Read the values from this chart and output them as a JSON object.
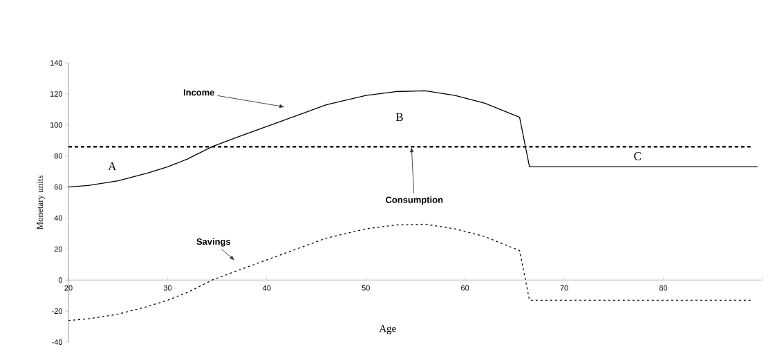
{
  "chart_data": {
    "type": "line",
    "xlabel": "Age",
    "ylabel": "Monetary units",
    "xlim": [
      20,
      90
    ],
    "ylim": [
      -40,
      140
    ],
    "xticks": [
      20,
      30,
      40,
      50,
      60,
      70,
      80,
      {
        "value": 90,
        "label": null
      }
    ],
    "yticks": [
      -40,
      -20,
      0,
      20,
      40,
      60,
      80,
      100,
      120,
      140
    ],
    "grid": false,
    "legend": false,
    "marker": "none",
    "series": [
      {
        "color": "#000000",
        "line_style": "solid",
        "x": [
          20,
          22,
          25,
          28,
          30,
          32,
          34.5,
          37,
          40,
          43,
          46,
          50,
          53,
          56,
          59,
          62,
          65.5,
          66.5,
          89.5
        ],
        "values": [
          60,
          61,
          64,
          69,
          73,
          78,
          86,
          92,
          99,
          106,
          113,
          119,
          121.5,
          122,
          119,
          114,
          105,
          73,
          73
        ]
      },
      {
        "color": "#000000",
        "line_style": "dashed",
        "x": [
          20,
          88.8
        ],
        "values": [
          86,
          86
        ]
      },
      {
        "color": "#000000",
        "line_style": "dotted",
        "x": [
          20,
          22,
          25,
          28,
          30,
          32,
          34.5,
          37,
          40,
          43,
          46,
          50,
          53,
          56,
          59,
          62,
          65.5,
          66.5,
          88.8
        ],
        "values": [
          -26,
          -25,
          -22,
          -17,
          -13,
          -8,
          0,
          6,
          13,
          20,
          27,
          33,
          35.5,
          36,
          33,
          28,
          19,
          -13,
          -13
        ]
      }
    ],
    "annotations": [
      "Income",
      {
        "text": "Consumption",
        "x": 54.6,
        "y": 86
      },
      "Savings",
      "A",
      "B",
      "C"
    ]
  }
}
